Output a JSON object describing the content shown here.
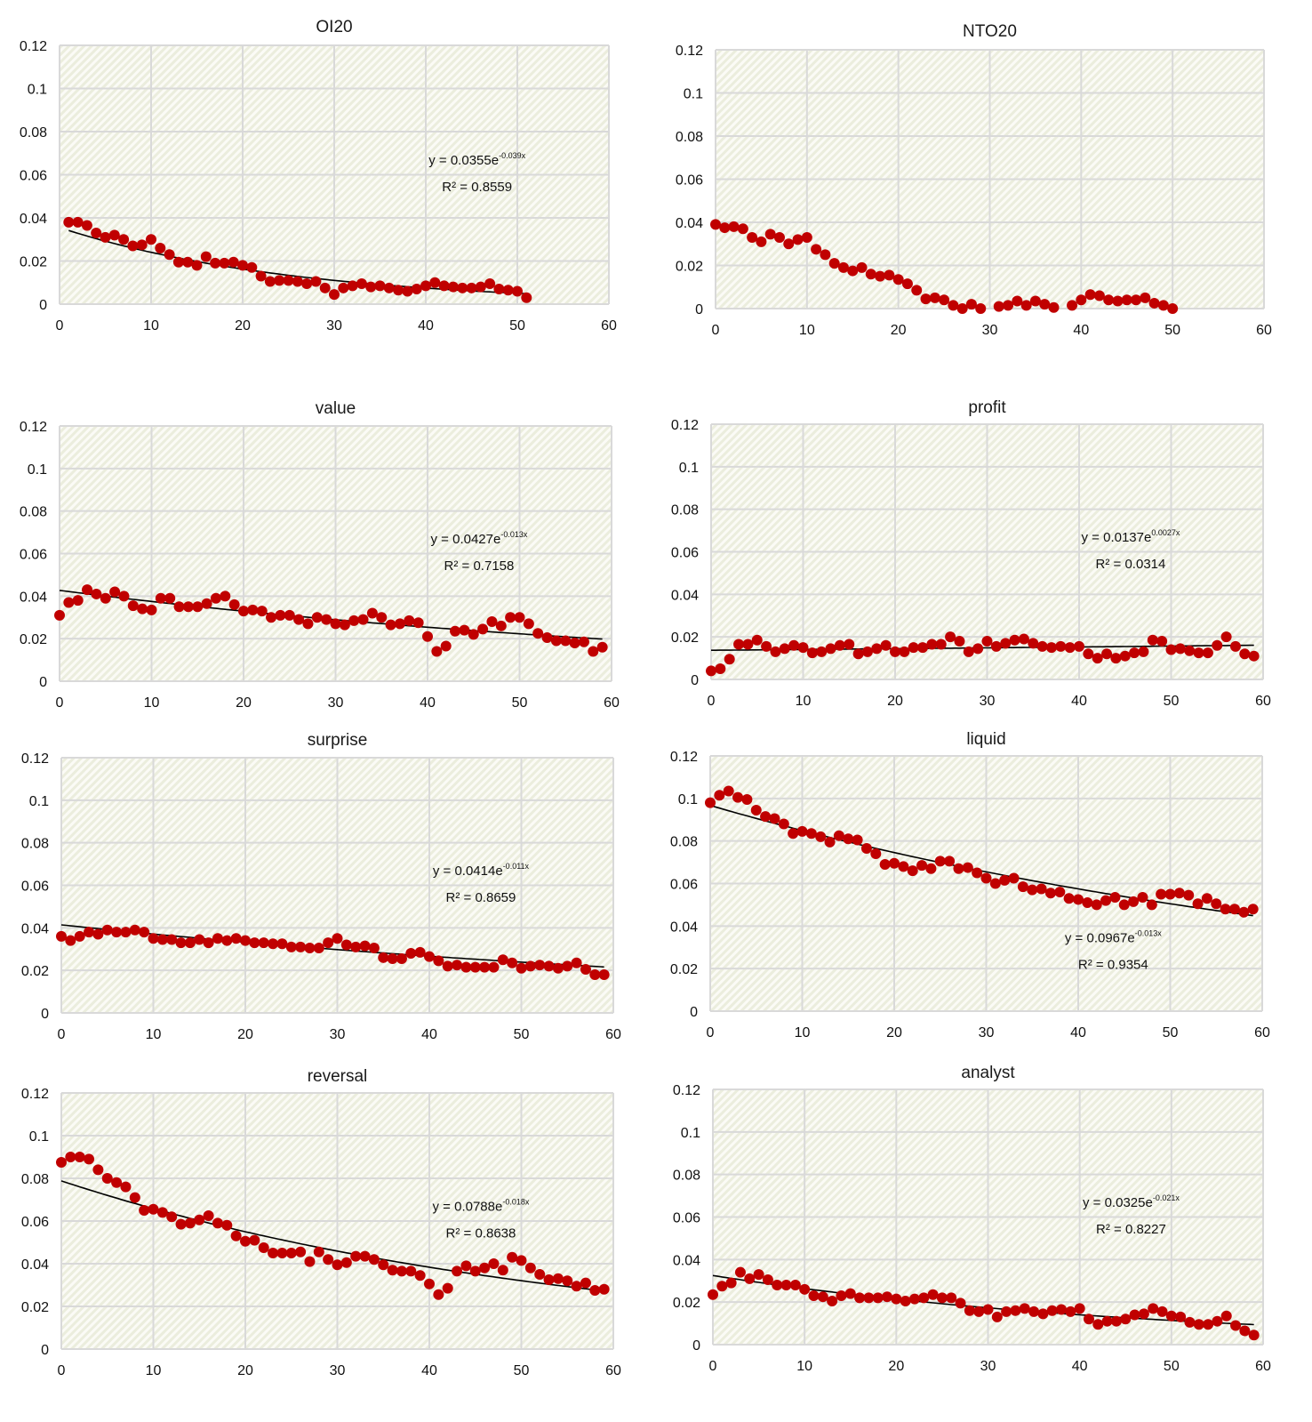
{
  "figure": {
    "marker_color": "#c00000",
    "trend_color": "#000000",
    "grid_color": "#d9d9d9",
    "plot_hatch_color": "#e8ead8"
  },
  "chart_data": [
    {
      "id": "oi20",
      "type": "scatter",
      "title": "OI20",
      "xlabel": "",
      "ylabel": "",
      "xlim": [
        0,
        60
      ],
      "ylim": [
        0,
        0.12
      ],
      "xticks": [
        "0",
        "10",
        "20",
        "30",
        "40",
        "50",
        "60"
      ],
      "yticks": [
        "0",
        "0.02",
        "0.04",
        "0.06",
        "0.08",
        "0.1",
        "0.12"
      ],
      "grid": true,
      "series": [
        {
          "name": "OI20",
          "x_start": 1,
          "values": [
            0.038,
            0.038,
            0.0365,
            0.033,
            0.031,
            0.032,
            0.03,
            0.027,
            0.0275,
            0.03,
            0.026,
            0.023,
            0.0195,
            0.0195,
            0.018,
            0.022,
            0.019,
            0.019,
            0.0195,
            0.018,
            0.017,
            0.013,
            0.0105,
            0.011,
            0.011,
            0.0105,
            0.0095,
            0.0105,
            0.0075,
            0.0045,
            0.0075,
            0.0085,
            0.0095,
            0.008,
            0.0085,
            0.0075,
            0.0065,
            0.006,
            0.007,
            0.0085,
            0.01,
            0.0085,
            0.008,
            0.0075,
            0.0075,
            0.008,
            0.0095,
            0.007,
            0.0065,
            0.006,
            0.003
          ]
        }
      ],
      "trendline": {
        "type": "exponential",
        "a": 0.0355,
        "b": -0.039,
        "x_range": [
          1,
          51
        ],
        "equation": "y = 0.0355e",
        "exponent": "-0.039x",
        "r2": "R² = 0.8559",
        "label_pos": "upper-right"
      }
    },
    {
      "id": "nto20",
      "type": "scatter",
      "title": "NTO20",
      "xlabel": "",
      "ylabel": "",
      "xlim": [
        0,
        60
      ],
      "ylim": [
        0,
        0.12
      ],
      "xticks": [
        "0",
        "10",
        "20",
        "30",
        "40",
        "50",
        "60"
      ],
      "yticks": [
        "0",
        "0.02",
        "0.04",
        "0.06",
        "0.08",
        "0.1",
        "0.12"
      ],
      "grid": true,
      "series": [
        {
          "name": "NTO20",
          "x_start": 0,
          "values": [
            0.039,
            0.0375,
            0.038,
            0.037,
            0.033,
            0.031,
            0.0345,
            0.033,
            0.03,
            0.032,
            0.033,
            0.0275,
            0.025,
            0.021,
            0.019,
            0.0175,
            0.019,
            0.016,
            0.015,
            0.0155,
            0.0135,
            0.0115,
            0.0085,
            0.0045,
            0.005,
            0.004,
            0.0015,
            0.0,
            0.002,
            0.0,
            null,
            0.001,
            0.0015,
            0.0035,
            0.0015,
            0.0035,
            0.002,
            0.0005,
            null,
            0.0015,
            0.004,
            0.0065,
            0.006,
            0.004,
            0.0035,
            0.004,
            0.004,
            0.005,
            0.0025,
            0.0015,
            0.0
          ]
        }
      ],
      "trendline": null
    },
    {
      "id": "value",
      "type": "scatter",
      "title": "value",
      "xlabel": "",
      "ylabel": "",
      "xlim": [
        0,
        60
      ],
      "ylim": [
        0,
        0.12
      ],
      "xticks": [
        "0",
        "10",
        "20",
        "30",
        "40",
        "50",
        "60"
      ],
      "yticks": [
        "0",
        "0.02",
        "0.04",
        "0.06",
        "0.08",
        "0.1",
        "0.12"
      ],
      "grid": true,
      "series": [
        {
          "name": "value",
          "x_start": 0,
          "values": [
            0.031,
            0.037,
            0.038,
            0.043,
            0.041,
            0.039,
            0.042,
            0.04,
            0.0355,
            0.034,
            0.0335,
            0.039,
            0.039,
            0.035,
            0.035,
            0.035,
            0.0365,
            0.039,
            0.04,
            0.036,
            0.033,
            0.0335,
            0.033,
            0.03,
            0.031,
            0.031,
            0.029,
            0.027,
            0.03,
            0.029,
            0.027,
            0.0265,
            0.0285,
            0.029,
            0.032,
            0.03,
            0.0265,
            0.027,
            0.0285,
            0.0275,
            0.021,
            0.014,
            0.0165,
            0.0235,
            0.024,
            0.022,
            0.0245,
            0.028,
            0.026,
            0.03,
            0.03,
            0.027,
            0.0225,
            0.0205,
            0.019,
            0.019,
            0.018,
            0.0185,
            0.014,
            0.016
          ]
        }
      ],
      "trendline": {
        "type": "exponential",
        "a": 0.0427,
        "b": -0.013,
        "x_range": [
          0,
          59
        ],
        "equation": "y = 0.0427e",
        "exponent": "-0.013x",
        "r2": "R² = 0.7158",
        "label_pos": "upper-right"
      }
    },
    {
      "id": "profit",
      "type": "scatter",
      "title": "profit",
      "xlabel": "",
      "ylabel": "",
      "xlim": [
        0,
        60
      ],
      "ylim": [
        0,
        0.12
      ],
      "xticks": [
        "0",
        "10",
        "20",
        "30",
        "40",
        "50",
        "60"
      ],
      "yticks": [
        "0",
        "0.02",
        "0.04",
        "0.06",
        "0.08",
        "0.1",
        "0.12"
      ],
      "grid": true,
      "series": [
        {
          "name": "profit",
          "x_start": 0,
          "values": [
            0.004,
            0.005,
            0.0095,
            0.0165,
            0.0165,
            0.0185,
            0.0155,
            0.013,
            0.0145,
            0.016,
            0.015,
            0.0125,
            0.013,
            0.0145,
            0.016,
            0.0165,
            0.012,
            0.013,
            0.0145,
            0.016,
            0.013,
            0.013,
            0.015,
            0.015,
            0.0165,
            0.0165,
            0.02,
            0.018,
            0.013,
            0.0145,
            0.018,
            0.0155,
            0.017,
            0.0185,
            0.019,
            0.017,
            0.0155,
            0.015,
            0.0155,
            0.015,
            0.0155,
            0.012,
            0.01,
            0.012,
            0.01,
            0.011,
            0.0125,
            0.013,
            0.0185,
            0.018,
            0.014,
            0.0145,
            0.0135,
            0.0125,
            0.0125,
            0.016,
            0.02,
            0.0155,
            0.012,
            0.011
          ]
        }
      ],
      "trendline": {
        "type": "exponential",
        "a": 0.0137,
        "b": 0.0027,
        "x_range": [
          0,
          59
        ],
        "equation": "y = 0.0137e",
        "exponent": "0.0027x",
        "r2": "R² = 0.0314",
        "label_pos": "upper-right"
      }
    },
    {
      "id": "surprise",
      "type": "scatter",
      "title": "surprise",
      "xlabel": "",
      "ylabel": "",
      "xlim": [
        0,
        60
      ],
      "ylim": [
        0,
        0.12
      ],
      "xticks": [
        "0",
        "10",
        "20",
        "30",
        "40",
        "50",
        "60"
      ],
      "yticks": [
        "0",
        "0.02",
        "0.04",
        "0.06",
        "0.08",
        "0.1",
        "0.12"
      ],
      "grid": true,
      "series": [
        {
          "name": "surprise",
          "x_start": 0,
          "values": [
            0.036,
            0.034,
            0.036,
            0.038,
            0.037,
            0.039,
            0.038,
            0.038,
            0.039,
            0.038,
            0.035,
            0.0345,
            0.0345,
            0.033,
            0.033,
            0.0345,
            0.033,
            0.035,
            0.034,
            0.035,
            0.034,
            0.033,
            0.033,
            0.0325,
            0.0325,
            0.031,
            0.031,
            0.0305,
            0.0305,
            0.033,
            0.035,
            0.032,
            0.031,
            0.0315,
            0.0305,
            0.026,
            0.0255,
            0.0255,
            0.028,
            0.0285,
            0.0265,
            0.0245,
            0.022,
            0.0225,
            0.0215,
            0.0215,
            0.0215,
            0.0215,
            0.025,
            0.0235,
            0.021,
            0.022,
            0.0225,
            0.022,
            0.021,
            0.022,
            0.0235,
            0.0205,
            0.018,
            0.018
          ]
        }
      ],
      "trendline": {
        "type": "exponential",
        "a": 0.0414,
        "b": -0.011,
        "x_range": [
          0,
          59
        ],
        "equation": "y = 0.0414e",
        "exponent": "-0.011x",
        "r2": "R² = 0.8659",
        "label_pos": "upper-right"
      }
    },
    {
      "id": "liquid",
      "type": "scatter",
      "title": "liquid",
      "xlabel": "",
      "ylabel": "",
      "xlim": [
        0,
        60
      ],
      "ylim": [
        0,
        0.12
      ],
      "xticks": [
        "0",
        "10",
        "20",
        "30",
        "40",
        "50",
        "60"
      ],
      "yticks": [
        "0",
        "0.02",
        "0.04",
        "0.06",
        "0.08",
        "0.1",
        "0.12"
      ],
      "grid": true,
      "series": [
        {
          "name": "liquid",
          "x_start": 0,
          "values": [
            0.098,
            0.1015,
            0.1035,
            0.1005,
            0.0995,
            0.0945,
            0.0915,
            0.0905,
            0.088,
            0.0835,
            0.0845,
            0.0835,
            0.082,
            0.0795,
            0.0825,
            0.081,
            0.0805,
            0.0765,
            0.074,
            0.069,
            0.0695,
            0.068,
            0.066,
            0.0685,
            0.067,
            0.0705,
            0.0705,
            0.067,
            0.0675,
            0.065,
            0.0625,
            0.06,
            0.0615,
            0.0625,
            0.0585,
            0.057,
            0.0575,
            0.0555,
            0.056,
            0.053,
            0.0525,
            0.051,
            0.05,
            0.052,
            0.0535,
            0.05,
            0.0515,
            0.0535,
            0.05,
            0.055,
            0.055,
            0.0555,
            0.0545,
            0.0505,
            0.053,
            0.0505,
            0.048,
            0.048,
            0.0465,
            0.048
          ]
        }
      ],
      "trendline": {
        "type": "exponential",
        "a": 0.0967,
        "b": -0.013,
        "x_range": [
          0,
          59
        ],
        "equation": "y = 0.0967e",
        "exponent": "-0.013x",
        "r2": "R² = 0.9354",
        "label_pos": "lower-right"
      }
    },
    {
      "id": "reversal",
      "type": "scatter",
      "title": "reversal",
      "xlabel": "",
      "ylabel": "",
      "xlim": [
        0,
        60
      ],
      "ylim": [
        0,
        0.12
      ],
      "xticks": [
        "0",
        "10",
        "20",
        "30",
        "40",
        "50",
        "60"
      ],
      "yticks": [
        "0",
        "0.02",
        "0.04",
        "0.06",
        "0.08",
        "0.1",
        "0.12"
      ],
      "grid": true,
      "series": [
        {
          "name": "reversal",
          "x_start": 0,
          "values": [
            0.0875,
            0.09,
            0.09,
            0.089,
            0.084,
            0.08,
            0.078,
            0.076,
            0.071,
            0.065,
            0.0655,
            0.064,
            0.062,
            0.0585,
            0.059,
            0.0605,
            0.0625,
            0.059,
            0.058,
            0.053,
            0.0505,
            0.051,
            0.0475,
            0.045,
            0.045,
            0.045,
            0.0455,
            0.041,
            0.0455,
            0.042,
            0.0395,
            0.0405,
            0.0435,
            0.0435,
            0.042,
            0.0395,
            0.037,
            0.0365,
            0.0365,
            0.0345,
            0.0305,
            0.0255,
            0.0285,
            0.0365,
            0.039,
            0.0365,
            0.038,
            0.04,
            0.037,
            0.043,
            0.0415,
            0.038,
            0.035,
            0.0325,
            0.033,
            0.032,
            0.0295,
            0.031,
            0.0275,
            0.028
          ]
        }
      ],
      "trendline": {
        "type": "exponential",
        "a": 0.0788,
        "b": -0.018,
        "x_range": [
          0,
          59
        ],
        "equation": "y = 0.0788e",
        "exponent": "-0.018x",
        "r2": "R² = 0.8638",
        "label_pos": "upper-right"
      }
    },
    {
      "id": "analyst",
      "type": "scatter",
      "title": "analyst",
      "xlabel": "",
      "ylabel": "",
      "xlim": [
        0,
        60
      ],
      "ylim": [
        0,
        0.12
      ],
      "xticks": [
        "0",
        "10",
        "20",
        "30",
        "40",
        "50",
        "60"
      ],
      "yticks": [
        "0",
        "0.02",
        "0.04",
        "0.06",
        "0.08",
        "0.1",
        "0.12"
      ],
      "grid": true,
      "series": [
        {
          "name": "analyst",
          "x_start": 0,
          "values": [
            0.0235,
            0.0275,
            0.029,
            0.034,
            0.031,
            0.033,
            0.0305,
            0.028,
            0.028,
            0.028,
            0.026,
            0.023,
            0.0225,
            0.0205,
            0.023,
            0.024,
            0.022,
            0.022,
            0.022,
            0.0225,
            0.0215,
            0.0205,
            0.0215,
            0.022,
            0.0235,
            0.022,
            0.022,
            0.0195,
            0.016,
            0.0155,
            0.0165,
            0.013,
            0.0155,
            0.016,
            0.017,
            0.0155,
            0.0145,
            0.016,
            0.0165,
            0.0155,
            0.017,
            0.012,
            0.0095,
            0.011,
            0.011,
            0.012,
            0.014,
            0.0145,
            0.017,
            0.0155,
            0.0135,
            0.013,
            0.0105,
            0.0095,
            0.0095,
            0.011,
            0.0135,
            0.009,
            0.0065,
            0.0045
          ]
        }
      ],
      "trendline": {
        "type": "exponential",
        "a": 0.0325,
        "b": -0.021,
        "x_range": [
          0,
          59
        ],
        "equation": "y = 0.0325e",
        "exponent": "-0.021x",
        "r2": "R² = 0.8227",
        "label_pos": "upper-right"
      }
    }
  ]
}
